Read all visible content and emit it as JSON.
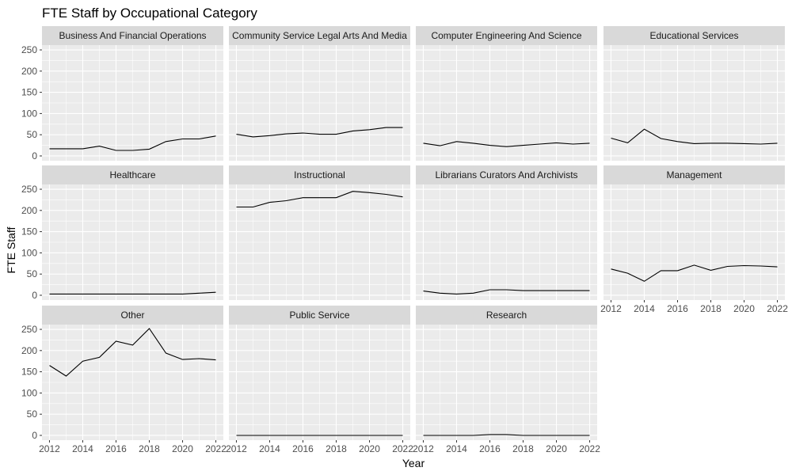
{
  "chart_data": {
    "type": "line",
    "title": "FTE Staff by Occupational Category",
    "xlabel": "Year",
    "ylabel": "FTE Staff",
    "xlim": [
      2012,
      2022
    ],
    "ylim": [
      0,
      250
    ],
    "x_ticks": [
      2012,
      2014,
      2016,
      2018,
      2020,
      2022
    ],
    "y_ticks": [
      0,
      50,
      100,
      150,
      200,
      250
    ],
    "grid": true,
    "layout": "facet_wrap 4 columns",
    "x": [
      2012,
      2013,
      2014,
      2015,
      2016,
      2017,
      2018,
      2019,
      2020,
      2021,
      2022
    ],
    "series": [
      {
        "name": "Business And Financial Operations",
        "values": [
          17,
          17,
          17,
          23,
          13,
          13,
          16,
          34,
          40,
          40,
          47
        ]
      },
      {
        "name": "Community Service Legal Arts And Media",
        "values": [
          51,
          45,
          48,
          52,
          54,
          51,
          51,
          59,
          62,
          67,
          67
        ]
      },
      {
        "name": "Computer Engineering And Science",
        "values": [
          30,
          24,
          34,
          30,
          25,
          22,
          25,
          28,
          31,
          28,
          30
        ]
      },
      {
        "name": "Educational Services",
        "values": [
          42,
          31,
          63,
          41,
          34,
          29,
          30,
          30,
          29,
          28,
          30
        ]
      },
      {
        "name": "Healthcare",
        "values": [
          3,
          3,
          3,
          3,
          3,
          3,
          3,
          3,
          3,
          5,
          7
        ]
      },
      {
        "name": "Instructional",
        "values": [
          208,
          208,
          219,
          223,
          230,
          230,
          230,
          245,
          242,
          238,
          232
        ]
      },
      {
        "name": "Librarians Curators And Archivists",
        "values": [
          10,
          5,
          3,
          5,
          13,
          13,
          11,
          11,
          11,
          11,
          11
        ]
      },
      {
        "name": "Management",
        "values": [
          62,
          52,
          33,
          58,
          58,
          71,
          59,
          68,
          70,
          69,
          67
        ]
      },
      {
        "name": "Other",
        "values": [
          165,
          140,
          175,
          184,
          222,
          213,
          252,
          194,
          179,
          181,
          178
        ]
      },
      {
        "name": "Public Service",
        "values": [
          0,
          0,
          0,
          0,
          0,
          0,
          0,
          0,
          0,
          0,
          0
        ]
      },
      {
        "name": "Research",
        "values": [
          0,
          0,
          0,
          0,
          2,
          2,
          0,
          0,
          0,
          0,
          0
        ]
      }
    ]
  }
}
